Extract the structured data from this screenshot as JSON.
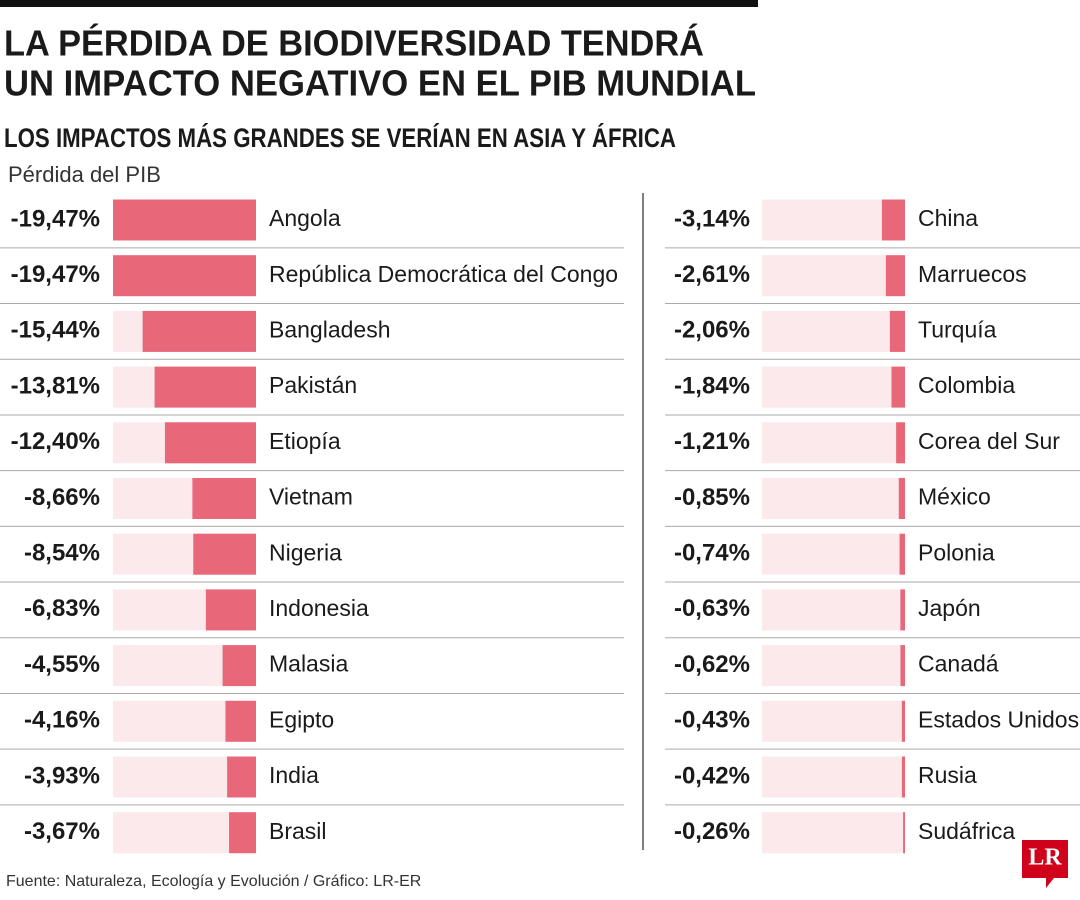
{
  "chart_data": [
    {
      "type": "bar",
      "orientation": "horizontal",
      "title": [
        "LA PÉRDIDA DE BIODIVERSIDAD TENDRÁ",
        "UN IMPACTO NEGATIVO EN EL PIB MUNDIAL"
      ],
      "subtitle": "LOS IMPACTOS MÁS GRANDES SE VERÍAN EN ASIA Y ÁFRICA",
      "axis_label": "Pérdida del PIB",
      "source": "Fuente: Naturaleza, Ecología y Evolución / Gráfico: LR-ER",
      "logo": "LR",
      "categories": [
        "Angola",
        "República Democrática del Congo",
        "Bangladesh",
        "Pakistán",
        "Etiopía",
        "Vietnam",
        "Nigeria",
        "Indonesia",
        "Malasia",
        "Egipto",
        "India",
        "Brasil"
      ],
      "values": [
        -19.47,
        -19.47,
        -15.44,
        -13.81,
        -12.4,
        -8.66,
        -8.54,
        -6.83,
        -4.55,
        -4.16,
        -3.93,
        -3.67
      ],
      "value_labels": [
        "-19,47%",
        "-19,47%",
        "-15,44%",
        "-13,81%",
        "-12,40%",
        "-8,66%",
        "-8,54%",
        "-6,83%",
        "-4,55%",
        "-4,16%",
        "-3,93%",
        "-3,67%"
      ],
      "xlim": [
        -19.47,
        0
      ],
      "color": "#e8687a"
    },
    {
      "type": "bar",
      "orientation": "horizontal",
      "categories": [
        "China",
        "Marruecos",
        "Turquía",
        "Colombia",
        "Corea del Sur",
        "México",
        "Polonia",
        "Japón",
        "Canadá",
        "Estados Unidos",
        "Rusia",
        "Sudáfrica"
      ],
      "values": [
        -3.14,
        -2.61,
        -2.06,
        -1.84,
        -1.21,
        -0.85,
        -0.74,
        -0.63,
        -0.62,
        -0.43,
        -0.42,
        -0.26
      ],
      "value_labels": [
        "-3,14%",
        "-2,61%",
        "-2,06%",
        "-1,84%",
        "-1,21%",
        "-0,85%",
        "-0,74%",
        "-0,63%",
        "-0,62%",
        "-0,43%",
        "-0,42%",
        "-0,26%"
      ],
      "xlim": [
        -19.47,
        0
      ],
      "color": "#e8687a"
    }
  ]
}
